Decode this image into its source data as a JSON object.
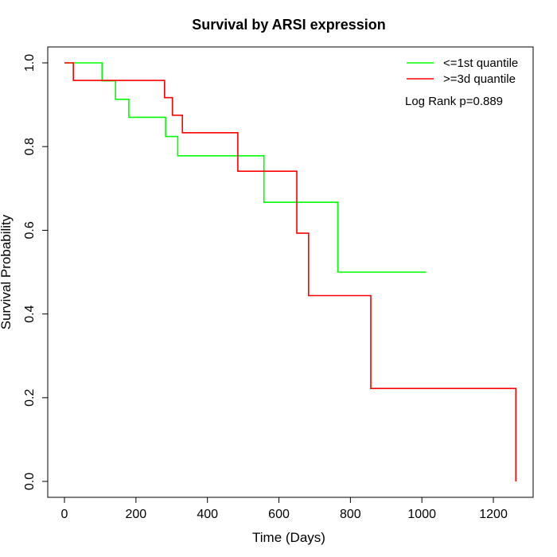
{
  "chart_data": {
    "type": "line",
    "subtype": "kaplan-meier step",
    "title": "Survival by ARSI expression",
    "xlabel": "Time (Days)",
    "ylabel": "Survival Probability",
    "xlim": [
      0,
      1260
    ],
    "ylim": [
      0,
      1.0
    ],
    "xticks": [
      0,
      200,
      400,
      600,
      800,
      1000,
      1200
    ],
    "xtick_labels": [
      "0",
      "200",
      "400",
      "600",
      "800",
      "1000",
      "1200"
    ],
    "yticks": [
      0.0,
      0.2,
      0.4,
      0.6,
      0.8,
      1.0
    ],
    "ytick_labels": [
      "0.0",
      "0.2",
      "0.4",
      "0.6",
      "0.8",
      "1.0"
    ],
    "grid": false,
    "legend_position": "top-right",
    "annotation": "Log Rank p=0.889",
    "series": [
      {
        "name": "<=1st quantile",
        "color": "#00ff00",
        "x": [
          0,
          105,
          105,
          143,
          143,
          180,
          180,
          283,
          283,
          317,
          317,
          558,
          558,
          765,
          765,
          1012
        ],
        "y": [
          1.0,
          1.0,
          0.957,
          0.957,
          0.913,
          0.913,
          0.87,
          0.87,
          0.824,
          0.824,
          0.778,
          0.778,
          0.667,
          0.667,
          0.5,
          0.5
        ]
      },
      {
        "name": ">=3d quantile",
        "color": "#ff0000",
        "x": [
          0,
          25,
          25,
          280,
          280,
          302,
          302,
          330,
          330,
          485,
          485,
          650,
          650,
          683,
          683,
          857,
          857,
          1263,
          1263
        ],
        "y": [
          1.0,
          1.0,
          0.958,
          0.958,
          0.917,
          0.917,
          0.875,
          0.875,
          0.833,
          0.833,
          0.741,
          0.741,
          0.593,
          0.593,
          0.444,
          0.444,
          0.222,
          0.222,
          0.0
        ]
      }
    ]
  }
}
